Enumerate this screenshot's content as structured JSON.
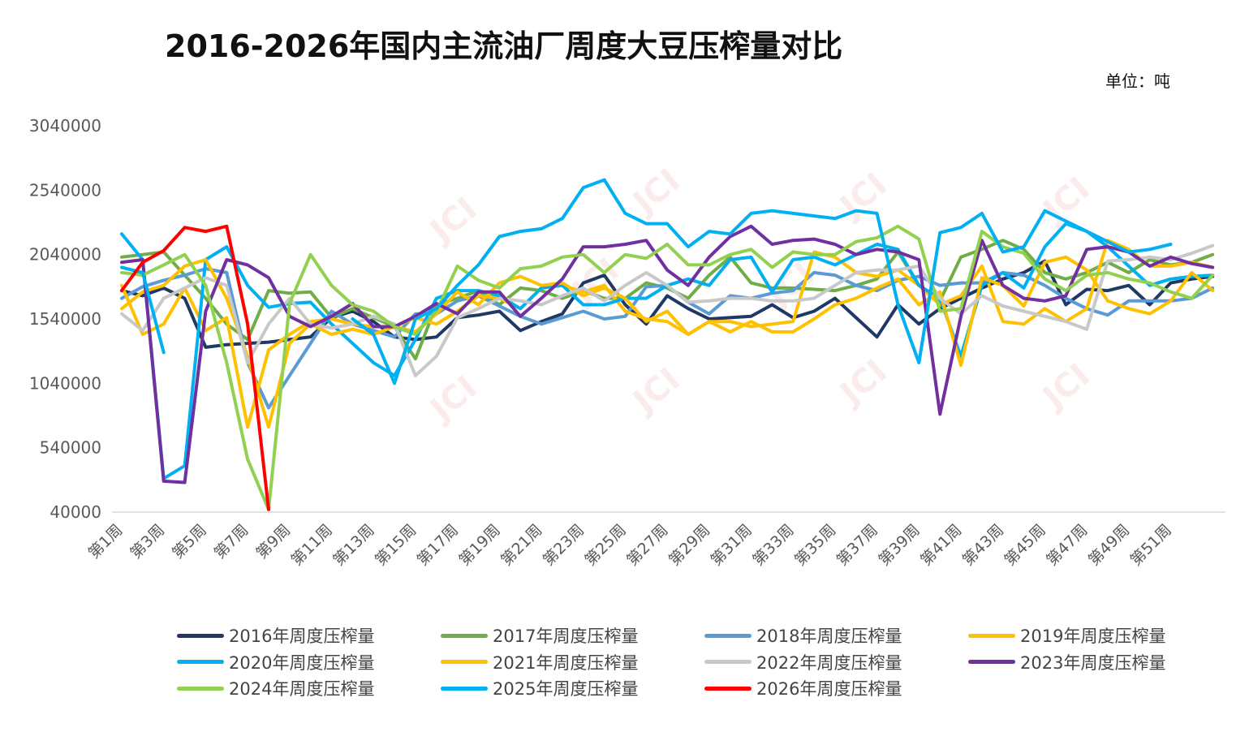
{
  "chart_data": {
    "type": "line",
    "title": "2016-2026年国内主流油厂周度大豆压榨量对比",
    "unit_label": "单位：吨",
    "ylim": [
      40000,
      3040000
    ],
    "y_ticks": [
      40000,
      540000,
      1040000,
      1540000,
      2040000,
      2540000,
      3040000
    ],
    "x_ticks": [
      "第1周",
      "第3周",
      "第5周",
      "第7周",
      "第9周",
      "第11周",
      "第13周",
      "第15周",
      "第17周",
      "第19周",
      "第21周",
      "第23周",
      "第25周",
      "第27周",
      "第29周",
      "第31周",
      "第33周",
      "第35周",
      "第37周",
      "第39周",
      "第41周",
      "第43周",
      "第45周",
      "第47周",
      "第49周",
      "第51周"
    ],
    "grid": false,
    "legend_position": "bottom",
    "watermark": "JCI",
    "series": [
      {
        "name": "2016年周度压榨量",
        "color": "#1f3864",
        "values": [
          1760000,
          1720000,
          1780000,
          1700000,
          1320000,
          1340000,
          1350000,
          1360000,
          1380000,
          1400000,
          1550000,
          1600000,
          1520000,
          1400000,
          1380000,
          1400000,
          1550000,
          1570000,
          1600000,
          1450000,
          1520000,
          1580000,
          1820000,
          1880000,
          1650000,
          1500000,
          1720000,
          1620000,
          1540000,
          1550000,
          1560000,
          1650000,
          1550000,
          1600000,
          1700000,
          1550000,
          1400000,
          1650000,
          1500000,
          1620000,
          1700000,
          1780000,
          1850000,
          1900000,
          1990000,
          1650000,
          1770000,
          1760000,
          1800000,
          1650000,
          1820000,
          1850000,
          1870000
        ]
      },
      {
        "name": "2017年周度压榨量",
        "color": "#70ad47",
        "values": [
          2020000,
          2040000,
          2060000,
          1880000,
          1700000,
          1500000,
          1380000,
          1760000,
          1740000,
          1750000,
          1550000,
          1620000,
          1550000,
          1480000,
          1230000,
          1650000,
          1700000,
          1760000,
          1650000,
          1780000,
          1760000,
          1700000,
          1760000,
          1700000,
          1700000,
          1820000,
          1780000,
          1700000,
          1880000,
          2020000,
          1820000,
          1780000,
          1780000,
          1770000,
          1760000,
          1800000,
          1850000,
          2060000,
          1800000,
          1680000,
          2020000,
          2080000,
          2150000,
          2080000,
          1900000,
          1850000,
          1900000,
          1980000,
          1900000,
          2000000,
          1960000,
          1980000,
          2040000
        ]
      },
      {
        "name": "2018年周度压榨量",
        "color": "#5b9bd5",
        "values": [
          1700000,
          1790000,
          1840000,
          1880000,
          1930000,
          1900000,
          1200000,
          850000,
          1100000,
          1350000,
          1600000,
          1500000,
          1450000,
          1400000,
          1580000,
          1580000,
          1680000,
          1720000,
          1640000,
          1560000,
          1500000,
          1550000,
          1600000,
          1540000,
          1560000,
          1790000,
          1800000,
          1670000,
          1580000,
          1720000,
          1700000,
          1740000,
          1760000,
          1900000,
          1880000,
          1800000,
          1760000,
          1840000,
          1870000,
          1800000,
          1820000,
          1820000,
          1900000,
          1880000,
          1800000,
          1700000,
          1620000,
          1570000,
          1680000,
          1680000,
          1680000,
          1700000,
          1780000
        ]
      },
      {
        "name": "2019年周度压榨量",
        "color": "#ffc000",
        "values": [
          1800000,
          1420000,
          1500000,
          1780000,
          1450000,
          1550000,
          700000,
          1300000,
          1420000,
          1520000,
          1540000,
          1500000,
          1480000,
          1480000,
          1550000,
          1500000,
          1600000,
          1720000,
          1700000,
          1620000,
          1780000,
          1800000,
          1750000,
          1800000,
          1600000,
          1540000,
          1520000,
          1420000,
          1520000,
          1520000,
          1480000,
          1500000,
          1520000,
          2060000,
          2020000,
          1900000,
          1870000,
          1920000,
          1800000,
          1650000,
          1720000,
          1950000,
          1520000,
          1500000,
          1620000,
          1520000,
          1620000,
          2150000,
          2080000,
          1950000,
          1950000,
          1980000,
          1940000
        ]
      },
      {
        "name": "2020年周度压榨量",
        "color": "#00b0f0",
        "values": [
          2200000,
          2000000,
          300000,
          400000,
          2000000,
          2100000,
          1800000,
          1630000,
          1660000,
          1670000,
          1500000,
          1350000,
          1200000,
          1100000,
          1380000,
          1700000,
          1760000,
          1760000,
          1720000,
          1620000,
          1780000,
          1800000,
          1650000,
          1650000,
          1700000,
          1700000,
          1800000,
          1850000,
          1800000,
          2000000,
          2020000,
          1750000,
          2000000,
          2020000,
          1960000,
          2040000,
          2120000,
          2080000,
          1800000,
          1700000,
          1250000,
          1800000,
          1900000,
          1780000,
          2100000,
          2280000,
          2220000,
          2100000,
          1950000,
          1800000,
          1850000,
          1870000,
          1880000
        ]
      },
      {
        "name": "2021年周度压榨量",
        "color": "#ffc000",
        "values": [
          1620000,
          1750000,
          1800000,
          1950000,
          2000000,
          1700000,
          1250000,
          700000,
          1350000,
          1500000,
          1420000,
          1460000,
          1420000,
          1480000,
          1440000,
          1580000,
          1750000,
          1650000,
          1820000,
          1870000,
          1800000,
          1820000,
          1720000,
          1780000,
          1700000,
          1520000,
          1600000,
          1420000,
          1520000,
          1440000,
          1520000,
          1440000,
          1440000,
          1540000,
          1650000,
          1700000,
          1780000,
          1850000,
          1650000,
          1750000,
          1180000,
          1860000,
          1800000,
          1640000,
          1980000,
          2020000,
          1920000,
          1680000,
          1620000,
          1580000,
          1680000,
          1900000,
          1760000
        ]
      },
      {
        "name": "2022年周度压榨量",
        "color": "#c8c8c8",
        "values": [
          1580000,
          1450000,
          1700000,
          1780000,
          1860000,
          1800000,
          1200000,
          1500000,
          1700000,
          1500000,
          1470000,
          1500000,
          1560000,
          1500000,
          1100000,
          1250000,
          1550000,
          1620000,
          1700000,
          1680000,
          1650000,
          1720000,
          1780000,
          1680000,
          1800000,
          1900000,
          1800000,
          1670000,
          1680000,
          1700000,
          1700000,
          1680000,
          1680000,
          1700000,
          1800000,
          1900000,
          1920000,
          1920000,
          1950000,
          1700000,
          1580000,
          1720000,
          1640000,
          1600000,
          1560000,
          1520000,
          1460000,
          1990000,
          2000000,
          2020000,
          2000000,
          2050000,
          2110000
        ]
      },
      {
        "name": "2023年周度压榨量",
        "color": "#7030a0",
        "values": [
          1980000,
          2000000,
          280000,
          270000,
          1600000,
          2000000,
          1960000,
          1860000,
          1560000,
          1480000,
          1560000,
          1660000,
          1480000,
          1480000,
          1560000,
          1660000,
          1580000,
          1750000,
          1750000,
          1560000,
          1700000,
          1850000,
          2100000,
          2100000,
          2120000,
          2150000,
          1920000,
          1800000,
          2020000,
          2180000,
          2260000,
          2120000,
          2150000,
          2160000,
          2120000,
          2040000,
          2080000,
          2060000,
          2000000,
          800000,
          1560000,
          2150000,
          1800000,
          1700000,
          1680000,
          1720000,
          2080000,
          2100000,
          2060000,
          1950000,
          2020000,
          1970000,
          1940000
        ]
      },
      {
        "name": "2024年周度压榨量",
        "color": "#92d050",
        "values": [
          1900000,
          1880000,
          1960000,
          2040000,
          1800000,
          1200000,
          450000,
          60000,
          1660000,
          2040000,
          1800000,
          1650000,
          1600000,
          1480000,
          1420000,
          1600000,
          1950000,
          1840000,
          1780000,
          1930000,
          1950000,
          2020000,
          2040000,
          1900000,
          2040000,
          2010000,
          2120000,
          1960000,
          1960000,
          2040000,
          2080000,
          1940000,
          2060000,
          2040000,
          2040000,
          2140000,
          2170000,
          2260000,
          2160000,
          1600000,
          1620000,
          2220000,
          2100000,
          2050000,
          1850000,
          1760000,
          1880000,
          1900000,
          1850000,
          1820000,
          1750000,
          1700000,
          1880000
        ]
      },
      {
        "name": "2025年周度压榨量",
        "color": "#00b0f0",
        "values": [
          1940000,
          1900000,
          1280000,
          null,
          null,
          null,
          null,
          null,
          null,
          null,
          null,
          1540000,
          1420000,
          1040000,
          1540000,
          1620000,
          1800000,
          1960000,
          2180000,
          2220000,
          2240000,
          2320000,
          2560000,
          2620000,
          2360000,
          2280000,
          2280000,
          2100000,
          2220000,
          2200000,
          2360000,
          2380000,
          2360000,
          2340000,
          2320000,
          2380000,
          2360000,
          1650000,
          1200000,
          2210000,
          2250000,
          2360000,
          2060000,
          2100000,
          2380000,
          2300000,
          2220000,
          2140000,
          2060000,
          2080000,
          2120000,
          null,
          null
        ]
      },
      {
        "name": "2026年周度压榨量",
        "color": "#ff0000",
        "values": [
          1760000,
          1980000,
          2070000,
          2250000,
          2220000,
          2260000,
          1500000,
          60000
        ]
      }
    ]
  }
}
